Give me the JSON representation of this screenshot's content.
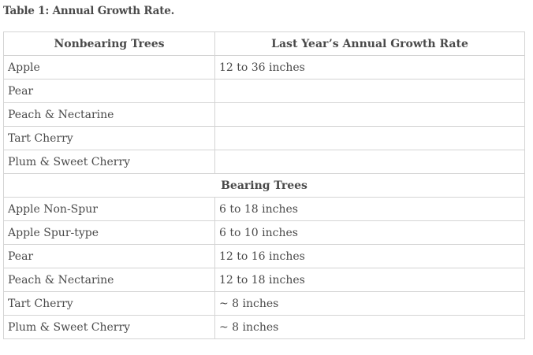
{
  "caption": "Table 1: Annual Growth Rate.",
  "table": {
    "headers": [
      "Nonbearing Trees",
      "Last Year’s Annual Growth Rate"
    ],
    "nonbearing_rows": [
      {
        "tree": "Apple",
        "rate": "12 to 36 inches"
      },
      {
        "tree": "Pear",
        "rate": ""
      },
      {
        "tree": "Peach & Nectarine",
        "rate": ""
      },
      {
        "tree": "Tart Cherry",
        "rate": ""
      },
      {
        "tree": "Plum & Sweet Cherry",
        "rate": ""
      }
    ],
    "section_label": "Bearing Trees",
    "bearing_rows": [
      {
        "tree": "Apple Non-Spur",
        "rate": "6 to 18 inches"
      },
      {
        "tree": "Apple Spur-type",
        "rate": "6 to 10 inches"
      },
      {
        "tree": "Pear",
        "rate": "12 to 16 inches"
      },
      {
        "tree": "Peach & Nectarine",
        "rate": "12 to 18 inches"
      },
      {
        "tree": "Tart Cherry",
        "rate": "~ 8 inches"
      },
      {
        "tree": "Plum & Sweet Cherry",
        "rate": "~ 8 inches"
      }
    ]
  }
}
